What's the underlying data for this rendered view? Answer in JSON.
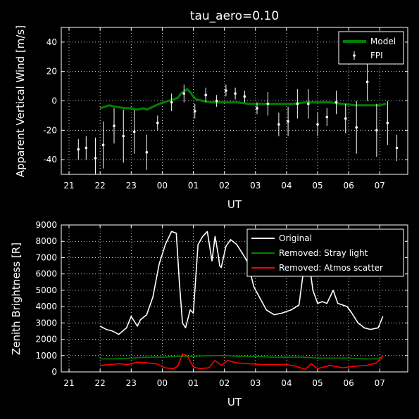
{
  "chart_data": [
    {
      "type": "line",
      "title": "tau_aero=0.10",
      "xlabel": "UT",
      "ylabel": "Apparent Vertical Wind [m/s]",
      "xlim": [
        20.75,
        31.9
      ],
      "ylim": [
        -50,
        50
      ],
      "x_tick_values": [
        21,
        22,
        23,
        24,
        25,
        26,
        27,
        28,
        29,
        30,
        31
      ],
      "x_tick_labels": [
        "21",
        "22",
        "23",
        "00",
        "01",
        "02",
        "03",
        "04",
        "05",
        "06",
        "07"
      ],
      "y_ticks": [
        -40,
        -20,
        0,
        20,
        40
      ],
      "grid": true,
      "legend_position": "top-right",
      "series": [
        {
          "name": "Model",
          "type": "line",
          "color": "#008000",
          "x": [
            22.0,
            22.3,
            22.5,
            22.8,
            23.0,
            23.2,
            23.4,
            23.5,
            23.7,
            23.9,
            24.2,
            24.5,
            24.6,
            24.8,
            24.9,
            25.0,
            25.1,
            25.3,
            25.6,
            26.0,
            26.4,
            26.8,
            27.1,
            27.5,
            27.8,
            28.2,
            28.6,
            29.0,
            29.4,
            29.8,
            30.2,
            30.6,
            31.0,
            31.2
          ],
          "y": [
            -5,
            -3,
            -4,
            -5,
            -5,
            -6,
            -5,
            -6,
            -4,
            -2,
            0,
            2,
            5,
            8,
            6,
            3,
            1,
            0,
            -1,
            -1,
            -1,
            -2,
            -2,
            -2,
            -2,
            -2,
            -1,
            -1,
            -1,
            -2,
            -3,
            -3,
            -3,
            -2
          ]
        },
        {
          "name": "FPI",
          "type": "errorbar",
          "color": "#ffffff",
          "x": [
            21.3,
            21.55,
            21.85,
            22.1,
            22.45,
            22.75,
            23.1,
            23.5,
            23.85,
            24.3,
            24.7,
            25.05,
            25.4,
            25.75,
            26.05,
            26.35,
            26.65,
            27.05,
            27.4,
            27.75,
            28.05,
            28.35,
            28.7,
            29.0,
            29.3,
            29.6,
            29.9,
            30.25,
            30.6,
            30.9,
            31.25,
            31.55
          ],
          "y": [
            -33,
            -32,
            -39,
            -30,
            -17,
            -24,
            -21,
            -35,
            -15,
            -1,
            5,
            -7,
            4,
            0,
            7,
            5,
            3,
            -5,
            -2,
            -16,
            -14,
            -2,
            -2,
            -16,
            -11,
            -1,
            -12,
            -18,
            13,
            -20,
            -15,
            -32
          ],
          "err": [
            7,
            8,
            14,
            16,
            12,
            18,
            15,
            12,
            5,
            6,
            6,
            5,
            5,
            4,
            4,
            4,
            4,
            4,
            8,
            8,
            10,
            10,
            10,
            8,
            6,
            8,
            10,
            18,
            13,
            18,
            15,
            9
          ]
        }
      ]
    },
    {
      "type": "line",
      "title": "",
      "xlabel": "UT",
      "ylabel": "Zenith Brightness [R]",
      "xlim": [
        20.75,
        31.9
      ],
      "ylim": [
        0,
        9000
      ],
      "x_tick_values": [
        21,
        22,
        23,
        24,
        25,
        26,
        27,
        28,
        29,
        30,
        31
      ],
      "x_tick_labels": [
        "21",
        "22",
        "23",
        "00",
        "01",
        "02",
        "03",
        "04",
        "05",
        "06",
        "07"
      ],
      "y_ticks": [
        0,
        1000,
        2000,
        3000,
        4000,
        5000,
        6000,
        7000,
        8000,
        9000
      ],
      "grid": true,
      "legend_position": "top-right",
      "series": [
        {
          "name": "Original",
          "color": "#ffffff",
          "x": [
            22.0,
            22.2,
            22.4,
            22.6,
            22.85,
            23.0,
            23.2,
            23.3,
            23.5,
            23.7,
            23.9,
            24.1,
            24.3,
            24.45,
            24.55,
            24.65,
            24.75,
            24.9,
            25.0,
            25.15,
            25.3,
            25.45,
            25.6,
            25.7,
            25.8,
            25.85,
            25.9,
            26.05,
            26.2,
            26.4,
            26.6,
            26.75,
            26.95,
            27.15,
            27.35,
            27.6,
            27.85,
            28.15,
            28.4,
            28.65,
            28.85,
            29.0,
            29.15,
            29.3,
            29.5,
            29.65,
            29.8,
            29.95,
            30.1,
            30.3,
            30.5,
            30.7,
            30.95,
            31.1
          ],
          "y": [
            2800,
            2600,
            2500,
            2300,
            2700,
            3400,
            2800,
            3200,
            3500,
            4600,
            6600,
            7800,
            8600,
            8500,
            5500,
            3000,
            2700,
            3800,
            3600,
            7800,
            8300,
            8600,
            6800,
            8300,
            7200,
            6500,
            6400,
            7700,
            8100,
            7800,
            7200,
            6700,
            5200,
            4500,
            3800,
            3500,
            3600,
            3800,
            4100,
            7700,
            5000,
            4200,
            4300,
            4200,
            5000,
            4200,
            4100,
            4000,
            3600,
            3000,
            2700,
            2600,
            2700,
            3400
          ]
        },
        {
          "name": "Removed: Stray light",
          "color": "#008000",
          "x": [
            22.0,
            22.5,
            23.0,
            23.5,
            24.0,
            24.5,
            25.0,
            25.5,
            26.0,
            26.5,
            27.0,
            27.5,
            28.0,
            28.5,
            29.0,
            29.5,
            30.0,
            30.5,
            31.0,
            31.1
          ],
          "y": [
            800,
            800,
            850,
            900,
            900,
            950,
            950,
            1000,
            1000,
            950,
            950,
            900,
            900,
            900,
            850,
            850,
            850,
            800,
            800,
            800
          ]
        },
        {
          "name": "Removed: Atmos scatter",
          "color": "#ff0000",
          "x": [
            22.0,
            22.3,
            22.6,
            22.9,
            23.2,
            23.5,
            23.8,
            24.1,
            24.35,
            24.5,
            24.65,
            24.8,
            25.0,
            25.2,
            25.5,
            25.7,
            25.9,
            26.1,
            26.4,
            26.8,
            27.2,
            27.6,
            28.0,
            28.3,
            28.6,
            28.8,
            29.0,
            29.4,
            29.8,
            30.2,
            30.6,
            30.9,
            31.1
          ],
          "y": [
            400,
            450,
            500,
            450,
            600,
            550,
            500,
            250,
            200,
            350,
            1100,
            1000,
            300,
            200,
            250,
            700,
            400,
            700,
            550,
            500,
            450,
            450,
            450,
            350,
            150,
            500,
            200,
            400,
            250,
            350,
            400,
            550,
            1000
          ]
        }
      ]
    }
  ]
}
